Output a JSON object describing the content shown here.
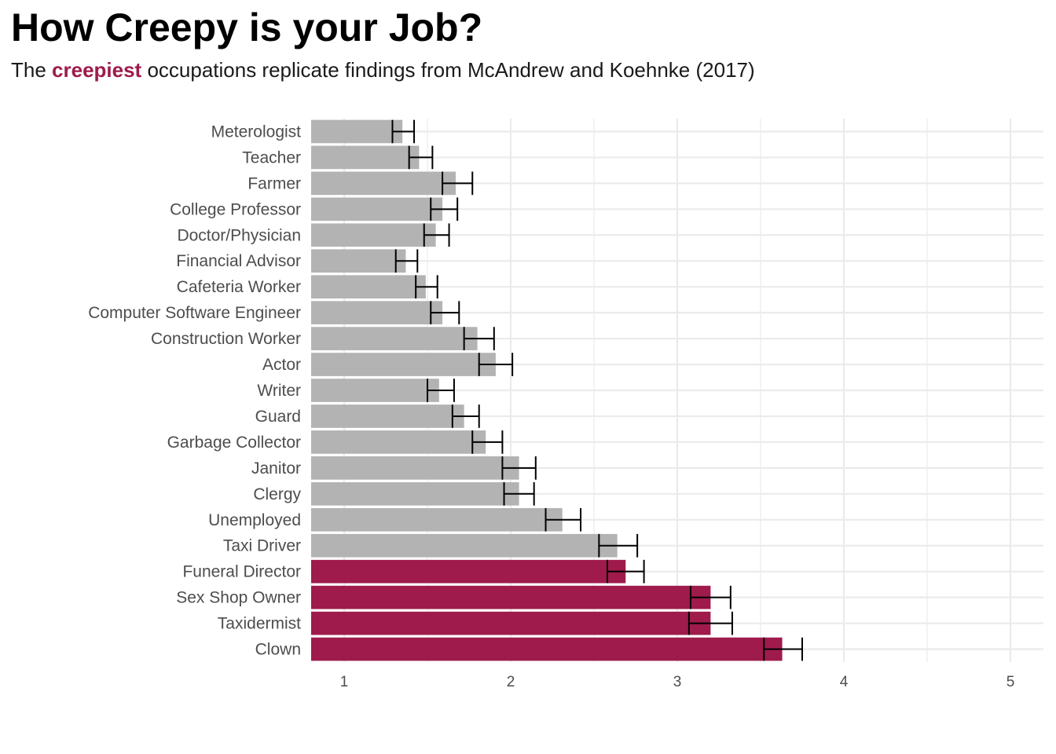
{
  "title": "How Creepy is your Job?",
  "subtitle": {
    "before": "The ",
    "highlight": "creepiest",
    "after": " occupations replicate findings from McAndrew and Koehnke (2017)",
    "highlight_color": "#9E1B4B"
  },
  "colors": {
    "default_bar": "#B3B3B3",
    "highlight_bar": "#9E1B4B",
    "error_bar": "#000000",
    "grid": "#EBEBEB"
  },
  "chart_data": {
    "type": "bar",
    "orientation": "horizontal",
    "xlabel": "",
    "ylabel": "",
    "xlim": [
      0.8,
      5.2
    ],
    "xticks": [
      1,
      2,
      3,
      4,
      5
    ],
    "grid": true,
    "legend": "none",
    "bars": [
      {
        "category": "Meterologist",
        "value": 1.35,
        "err_low": 1.29,
        "err_high": 1.42,
        "highlight": false
      },
      {
        "category": "Teacher",
        "value": 1.45,
        "err_low": 1.39,
        "err_high": 1.53,
        "highlight": false
      },
      {
        "category": "Farmer",
        "value": 1.67,
        "err_low": 1.59,
        "err_high": 1.77,
        "highlight": false
      },
      {
        "category": "College Professor",
        "value": 1.59,
        "err_low": 1.52,
        "err_high": 1.68,
        "highlight": false
      },
      {
        "category": "Doctor/Physician",
        "value": 1.55,
        "err_low": 1.48,
        "err_high": 1.63,
        "highlight": false
      },
      {
        "category": "Financial Advisor",
        "value": 1.37,
        "err_low": 1.31,
        "err_high": 1.44,
        "highlight": false
      },
      {
        "category": "Cafeteria Worker",
        "value": 1.49,
        "err_low": 1.43,
        "err_high": 1.56,
        "highlight": false
      },
      {
        "category": "Computer Software Engineer",
        "value": 1.59,
        "err_low": 1.52,
        "err_high": 1.69,
        "highlight": false
      },
      {
        "category": "Construction Worker",
        "value": 1.8,
        "err_low": 1.72,
        "err_high": 1.9,
        "highlight": false
      },
      {
        "category": "Actor",
        "value": 1.91,
        "err_low": 1.81,
        "err_high": 2.01,
        "highlight": false
      },
      {
        "category": "Writer",
        "value": 1.57,
        "err_low": 1.5,
        "err_high": 1.66,
        "highlight": false
      },
      {
        "category": "Guard",
        "value": 1.72,
        "err_low": 1.65,
        "err_high": 1.81,
        "highlight": false
      },
      {
        "category": "Garbage Collector",
        "value": 1.85,
        "err_low": 1.77,
        "err_high": 1.95,
        "highlight": false
      },
      {
        "category": "Janitor",
        "value": 2.05,
        "err_low": 1.95,
        "err_high": 2.15,
        "highlight": false
      },
      {
        "category": "Clergy",
        "value": 2.05,
        "err_low": 1.96,
        "err_high": 2.14,
        "highlight": false
      },
      {
        "category": "Unemployed",
        "value": 2.31,
        "err_low": 2.21,
        "err_high": 2.42,
        "highlight": false
      },
      {
        "category": "Taxi Driver",
        "value": 2.64,
        "err_low": 2.53,
        "err_high": 2.76,
        "highlight": false
      },
      {
        "category": "Funeral Director",
        "value": 2.69,
        "err_low": 2.58,
        "err_high": 2.8,
        "highlight": true
      },
      {
        "category": "Sex Shop Owner",
        "value": 3.2,
        "err_low": 3.08,
        "err_high": 3.32,
        "highlight": true
      },
      {
        "category": "Taxidermist",
        "value": 3.2,
        "err_low": 3.07,
        "err_high": 3.33,
        "highlight": true
      },
      {
        "category": "Clown",
        "value": 3.63,
        "err_low": 3.52,
        "err_high": 3.75,
        "highlight": true
      }
    ]
  }
}
